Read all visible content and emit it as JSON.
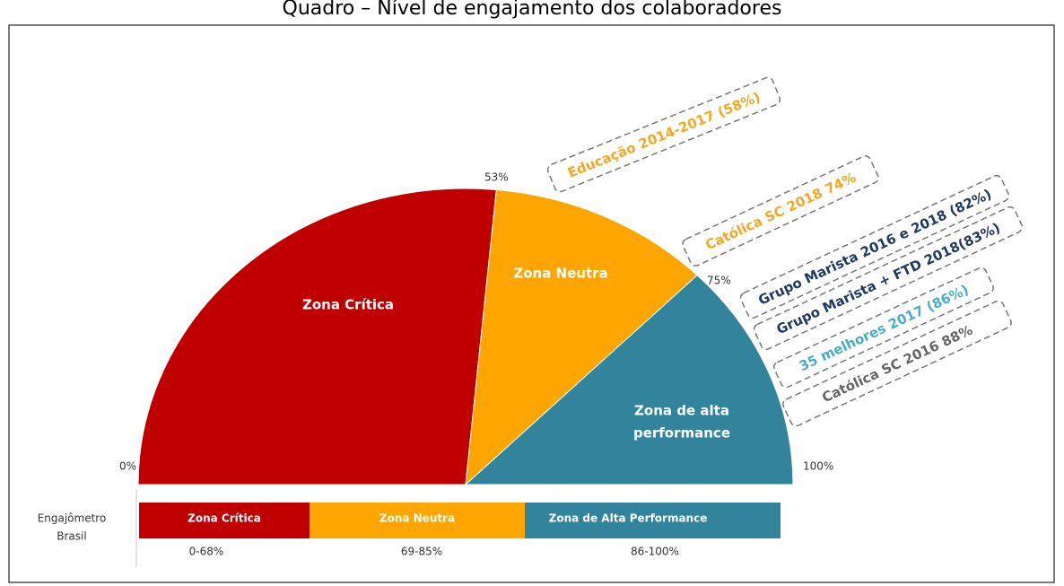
{
  "title": "Quadro – Nível de engajamento dos colaboradores",
  "scale": [
    {
      "value": 0,
      "label": "0%"
    },
    {
      "value": 53,
      "label": "53%"
    },
    {
      "value": 75,
      "label": "75%"
    },
    {
      "value": 100,
      "label": "100%"
    }
  ],
  "zones": [
    {
      "label": [
        "Zona Crítica"
      ],
      "color": "#c00000"
    },
    {
      "label": [
        "Zona Neutra"
      ],
      "color": "#ffa500"
    },
    {
      "label": [
        "Zona de alta",
        "performance"
      ],
      "color": "#31849b"
    }
  ],
  "benchmarks": [
    {
      "label": "Educação 2014-2017 (58%)",
      "color": "#f5a623"
    },
    {
      "label": "Católica SC  2018 74%",
      "color": "#f5a623"
    },
    {
      "label": "Grupo Marista 2016 e 2018 (82%)",
      "color": "#1f3864"
    },
    {
      "label": "Grupo Marista + FTD 2018(83%)",
      "color": "#1f3864"
    },
    {
      "label": "35 melhores 2017 (86%)",
      "color": "#4bacc6"
    },
    {
      "label": "Católica SC 2016 88%",
      "color": "#666666"
    }
  ],
  "engajometro": {
    "label": [
      "Engajômetro",
      "Brasil"
    ],
    "zones": [
      {
        "label": "Zona Crítica",
        "range": "0-68%",
        "color": "#c00000"
      },
      {
        "label": "Zona Neutra",
        "range": "69-85%",
        "color": "#ffa500"
      },
      {
        "label": "Zona de Alta Performance",
        "range": "86-100%",
        "color": "#31849b"
      }
    ]
  }
}
